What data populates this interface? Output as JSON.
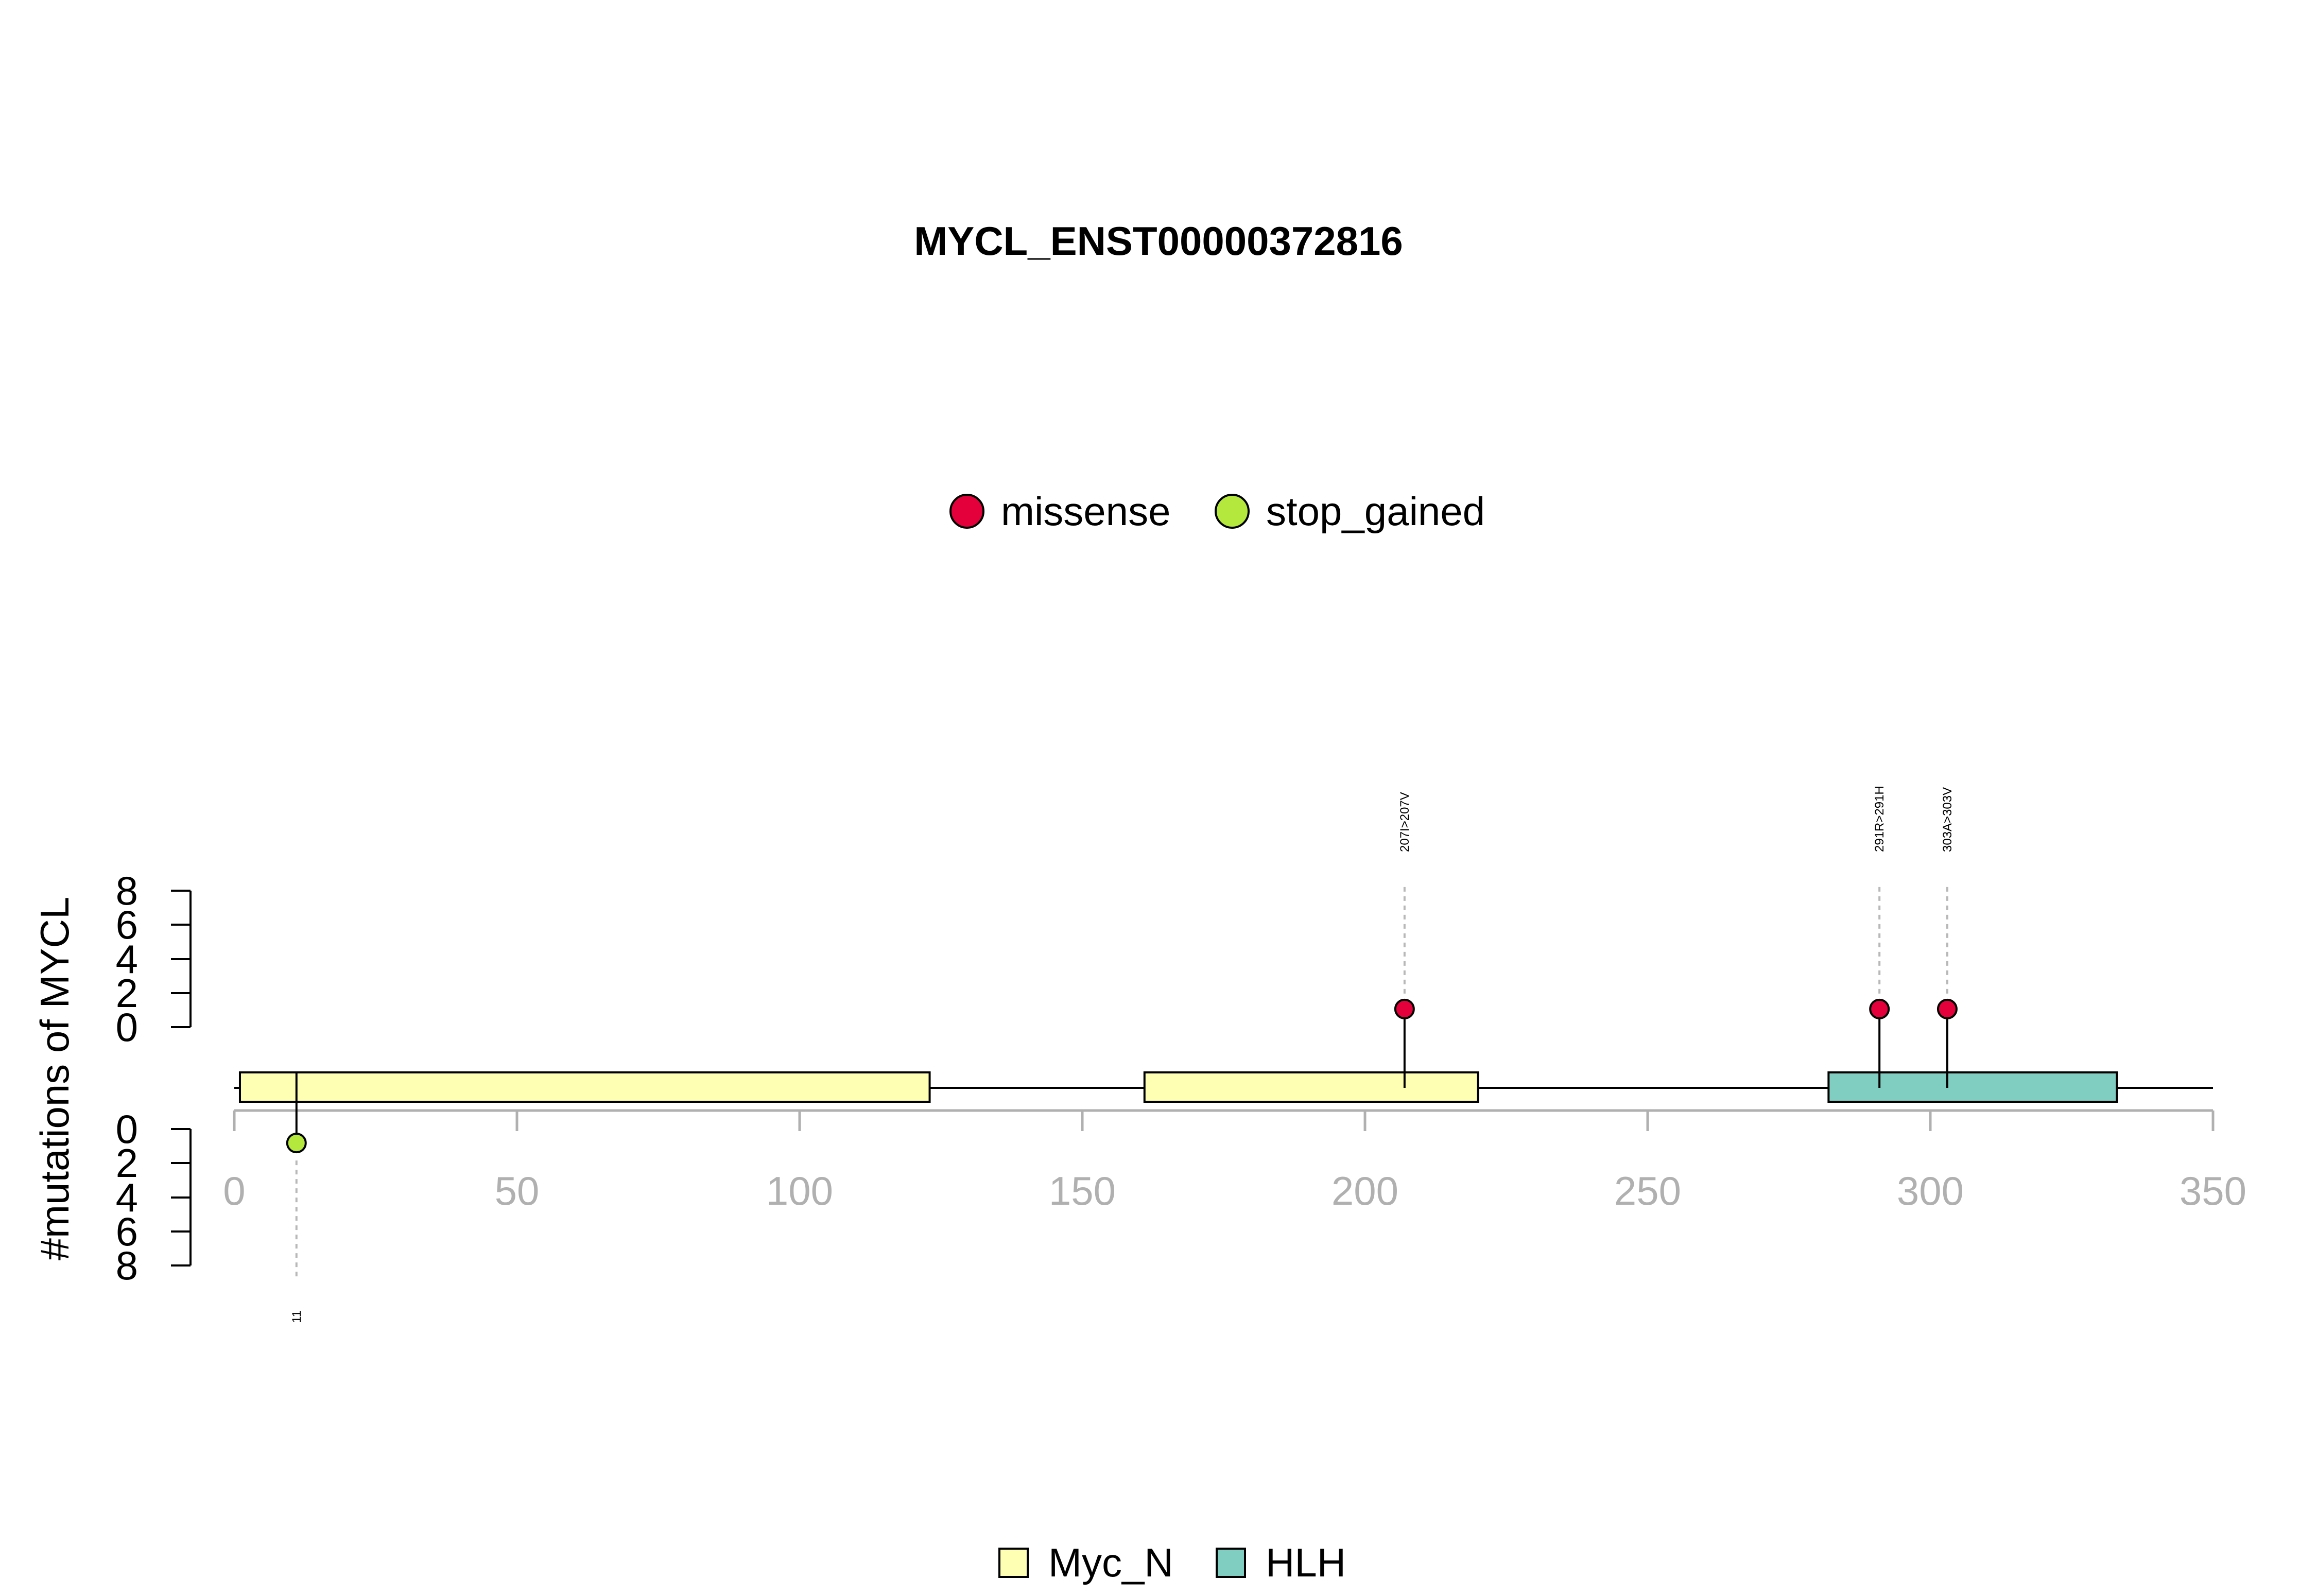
{
  "chart_data": {
    "type": "lollipop",
    "title": "MYCL_ENST00000372816",
    "ylabel": "#mutations of MYCL",
    "xlim": [
      0,
      350
    ],
    "x_ticks": [
      "0",
      "50",
      "100",
      "150",
      "200",
      "250",
      "300",
      "350"
    ],
    "x_tick_values": [
      0,
      50,
      100,
      150,
      200,
      250,
      300,
      350
    ],
    "y_ticks_top": [
      "8",
      "6",
      "4",
      "2",
      "0"
    ],
    "y_ticks_bottom": [
      "0",
      "2",
      "4",
      "6",
      "8"
    ],
    "y_tick_values_top": [
      8,
      6,
      4,
      2,
      0
    ],
    "y_tick_values_bottom": [
      0,
      2,
      4,
      6,
      8
    ],
    "ylim": [
      0,
      8
    ],
    "protein_length": 350,
    "mutation_legend": [
      {
        "name": "missense",
        "color": "#e4003a"
      },
      {
        "name": "stop_gained",
        "color": "#b5e83c"
      }
    ],
    "domain_legend": [
      {
        "name": "Myc_N",
        "color": "#ffffb3"
      },
      {
        "name": "HLH",
        "color": "#80cdc1"
      }
    ],
    "domains": [
      {
        "name": "Myc_N",
        "start": 1,
        "end": 123,
        "color": "#ffffb3"
      },
      {
        "name": "Myc_N",
        "start": 161,
        "end": 220,
        "color": "#ffffb3"
      },
      {
        "name": "HLH",
        "start": 282,
        "end": 333,
        "color": "#80cdc1"
      }
    ],
    "mutations": [
      {
        "position": 207,
        "count": 1,
        "type": "missense",
        "side": "top",
        "label": "207I>207V"
      },
      {
        "position": 291,
        "count": 1,
        "type": "missense",
        "side": "top",
        "label": "291R>291H"
      },
      {
        "position": 303,
        "count": 1,
        "type": "missense",
        "side": "top",
        "label": "303A>303V"
      },
      {
        "position": 11,
        "count": 1,
        "type": "stop_gained",
        "side": "bottom",
        "label": "11"
      }
    ]
  }
}
